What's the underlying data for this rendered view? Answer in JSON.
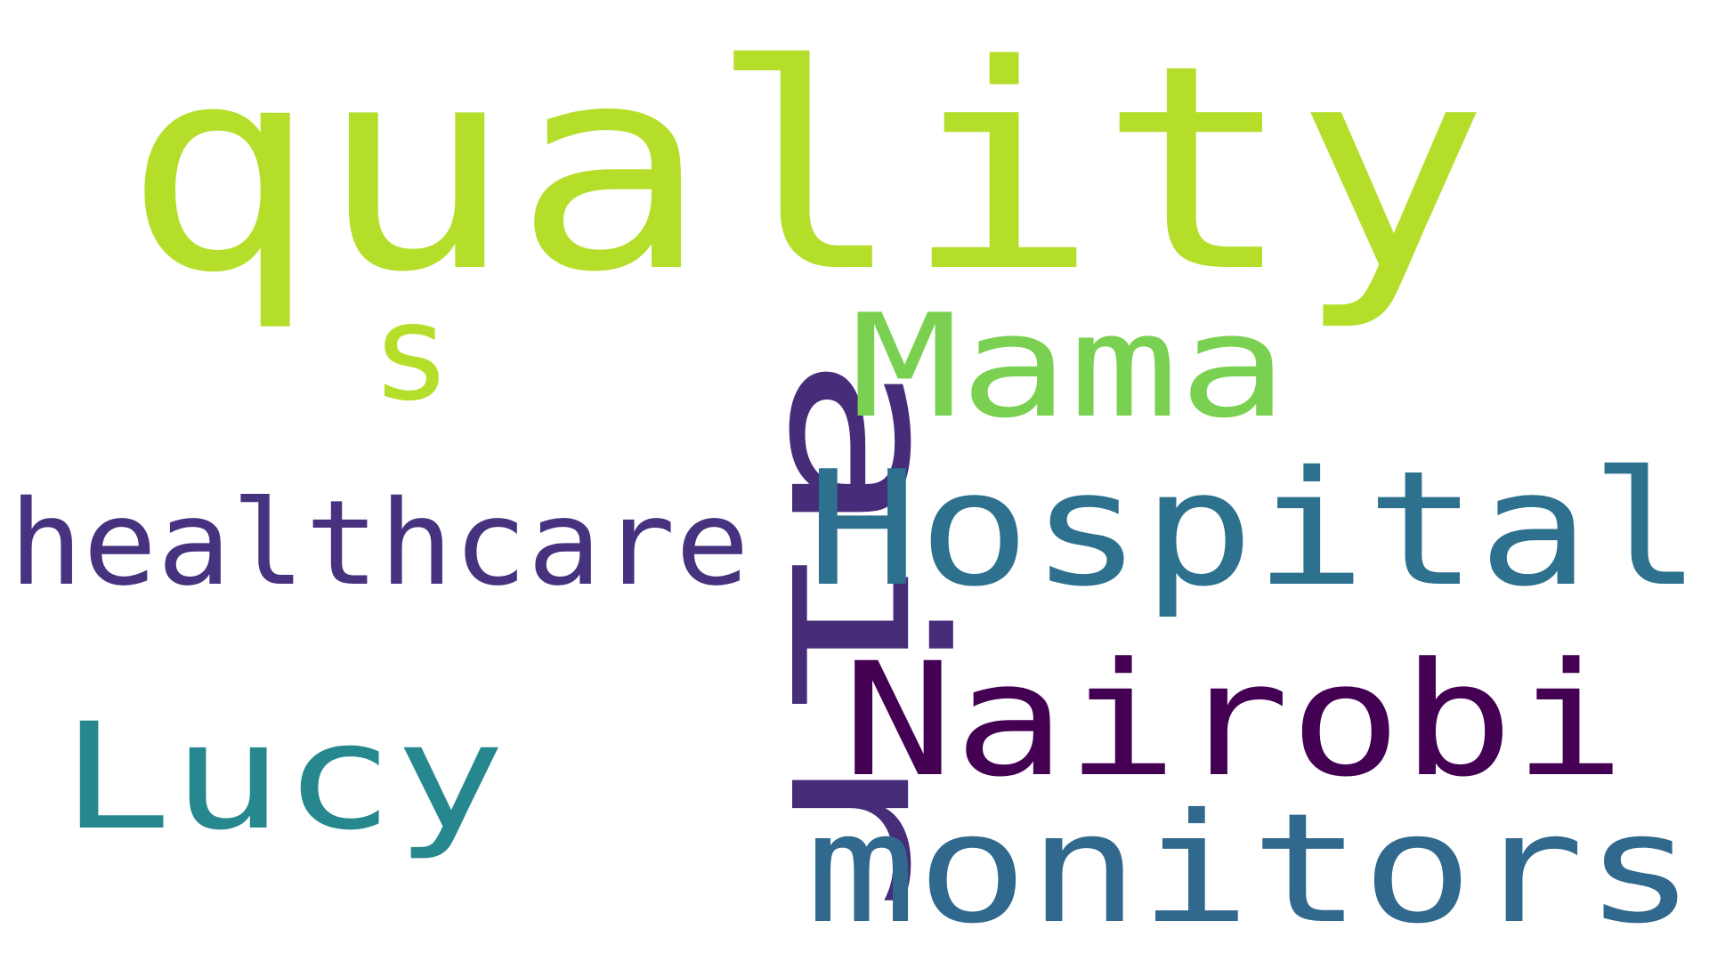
{
  "word_cloud": {
    "words": [
      {
        "text": "quality",
        "color": "#b5de2b"
      },
      {
        "text": "air",
        "color": "#472c7a"
      },
      {
        "text": "Hospital",
        "color": "#2d718e"
      },
      {
        "text": "Nairobi",
        "color": "#440154"
      },
      {
        "text": "monitors",
        "color": "#31688e"
      },
      {
        "text": "Mama",
        "color": "#7ad151"
      },
      {
        "text": "Lucy",
        "color": "#26888e"
      },
      {
        "text": "healthcare",
        "color": "#46327e"
      },
      {
        "text": "s",
        "color": "#b5de2b"
      }
    ]
  }
}
